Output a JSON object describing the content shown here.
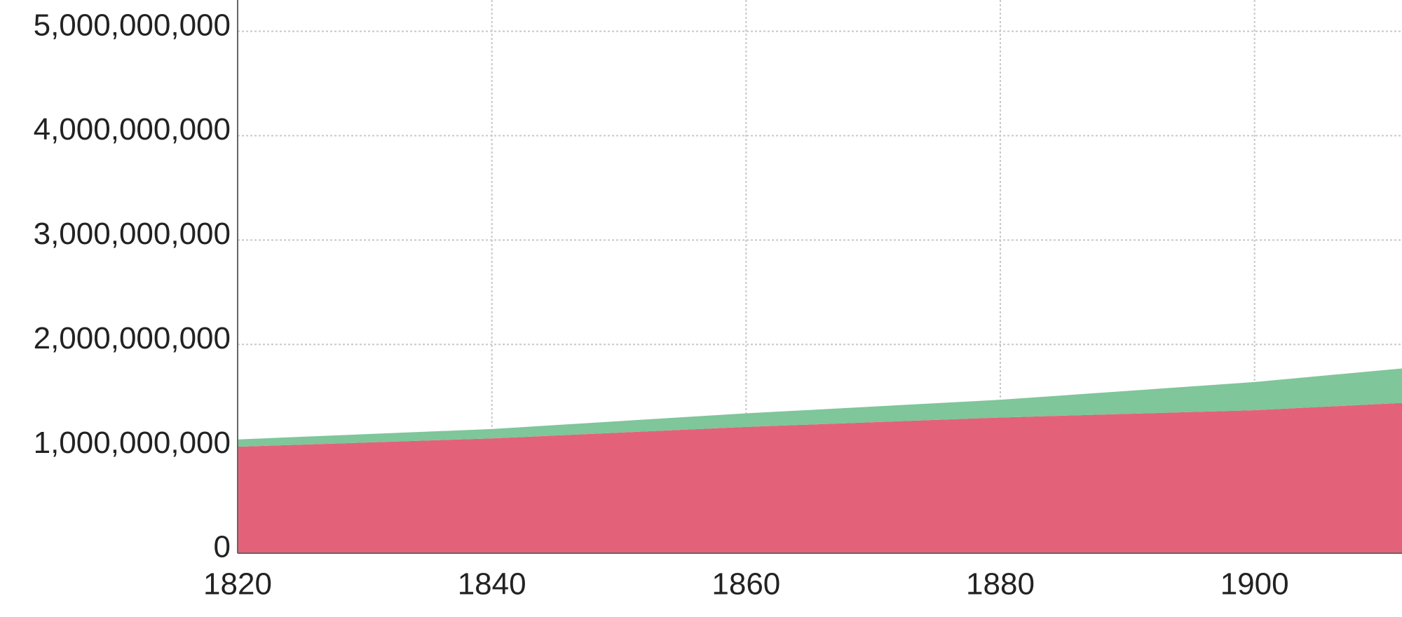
{
  "chart_data": {
    "type": "stacked-area",
    "x": [
      1820,
      1840,
      1860,
      1880,
      1900,
      1911.6
    ],
    "series": [
      {
        "color": "#e3627a",
        "values": [
          1020000000,
          1100000000,
          1210000000,
          1300000000,
          1370000000,
          1440000000
        ]
      },
      {
        "color": "#7fc69a",
        "values": [
          70000000,
          90000000,
          130000000,
          170000000,
          270000000,
          330000000
        ]
      }
    ],
    "xlim": [
      1820,
      1911.6
    ],
    "ylim": [
      0,
      5300000000
    ],
    "xticks": [
      1820,
      1840,
      1860,
      1880,
      1900
    ],
    "yticks": [
      0,
      {
        "value": 1000000000,
        "label": "1,000,000,000"
      },
      {
        "value": 2000000000,
        "label": "2,000,000,000"
      },
      {
        "value": 3000000000,
        "label": "3,000,000,000"
      },
      {
        "value": 4000000000,
        "label": "4,000,000,000"
      },
      {
        "value": 5000000000,
        "label": "5,000,000,000"
      }
    ],
    "grid": true
  }
}
